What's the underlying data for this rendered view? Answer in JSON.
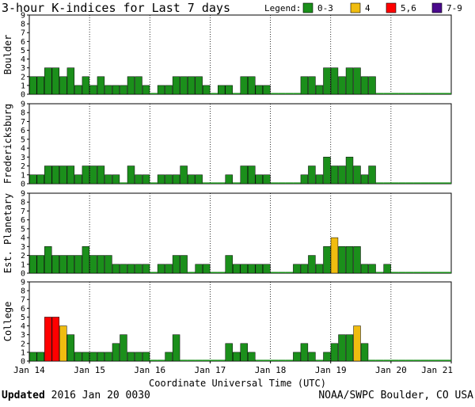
{
  "chart_data": {
    "type": "bar",
    "title": "3-hour K-indices for Last 7 days",
    "legend": {
      "label": "Legend:",
      "placement": "top-right",
      "items": [
        {
          "label": "0-3",
          "color": "#1b8f1b"
        },
        {
          "label": "4",
          "color": "#f0bc10"
        },
        {
          "label": "5,6",
          "color": "#ff0000"
        },
        {
          "label": "7-9",
          "color": "#4a0a8c"
        }
      ]
    },
    "xlabel": "Coordinate Universal Time (UTC)",
    "x_ticks": [
      "Jan 14",
      "Jan 15",
      "Jan 16",
      "Jan 17",
      "Jan 18",
      "Jan 19",
      "Jan 20",
      "Jan 21"
    ],
    "ylim": [
      0,
      9
    ],
    "y_ticks": [
      "0",
      "1",
      "2",
      "3",
      "4",
      "5",
      "6",
      "7",
      "8",
      "9"
    ],
    "bins_per_day": 8,
    "series": [
      {
        "name": "Boulder",
        "values": [
          2,
          2,
          3,
          3,
          2,
          3,
          1,
          2,
          1,
          2,
          1,
          1,
          1,
          2,
          2,
          1,
          0,
          1,
          1,
          2,
          2,
          2,
          2,
          1,
          0,
          1,
          1,
          0,
          2,
          2,
          1,
          1,
          0,
          0,
          0,
          0,
          2,
          2,
          1,
          3,
          3,
          2,
          3,
          3,
          2,
          2
        ]
      },
      {
        "name": "Fredericksburg",
        "values": [
          1,
          1,
          2,
          2,
          2,
          2,
          1,
          2,
          2,
          2,
          1,
          1,
          0,
          2,
          1,
          1,
          0,
          1,
          1,
          1,
          2,
          1,
          1,
          0,
          0,
          0,
          1,
          0,
          2,
          2,
          1,
          1,
          0,
          0,
          0,
          0,
          1,
          2,
          1,
          3,
          2,
          2,
          3,
          2,
          1,
          2
        ]
      },
      {
        "name": "Est. Planetary",
        "values": [
          2,
          2,
          3,
          2,
          2,
          2,
          2,
          3,
          2,
          2,
          2,
          1,
          1,
          1,
          1,
          1,
          0,
          1,
          1,
          2,
          2,
          0,
          1,
          1,
          0,
          0,
          2,
          1,
          1,
          1,
          1,
          1,
          0,
          0,
          0,
          1,
          1,
          2,
          1,
          3,
          4,
          3,
          3,
          3,
          1,
          1,
          0,
          1
        ]
      },
      {
        "name": "College",
        "values": [
          1,
          1,
          5,
          5,
          4,
          3,
          1,
          1,
          1,
          1,
          1,
          2,
          3,
          1,
          1,
          1,
          0,
          0,
          1,
          3,
          0,
          0,
          0,
          0,
          0,
          0,
          2,
          1,
          2,
          1,
          0,
          0,
          0,
          0,
          0,
          1,
          2,
          1,
          0,
          1,
          2,
          3,
          3,
          4,
          2
        ]
      }
    ]
  },
  "footer": {
    "updated_label": "Updated",
    "updated_value": "2016 Jan 20 0030",
    "credit": "NOAA/SWPC Boulder, CO USA"
  }
}
